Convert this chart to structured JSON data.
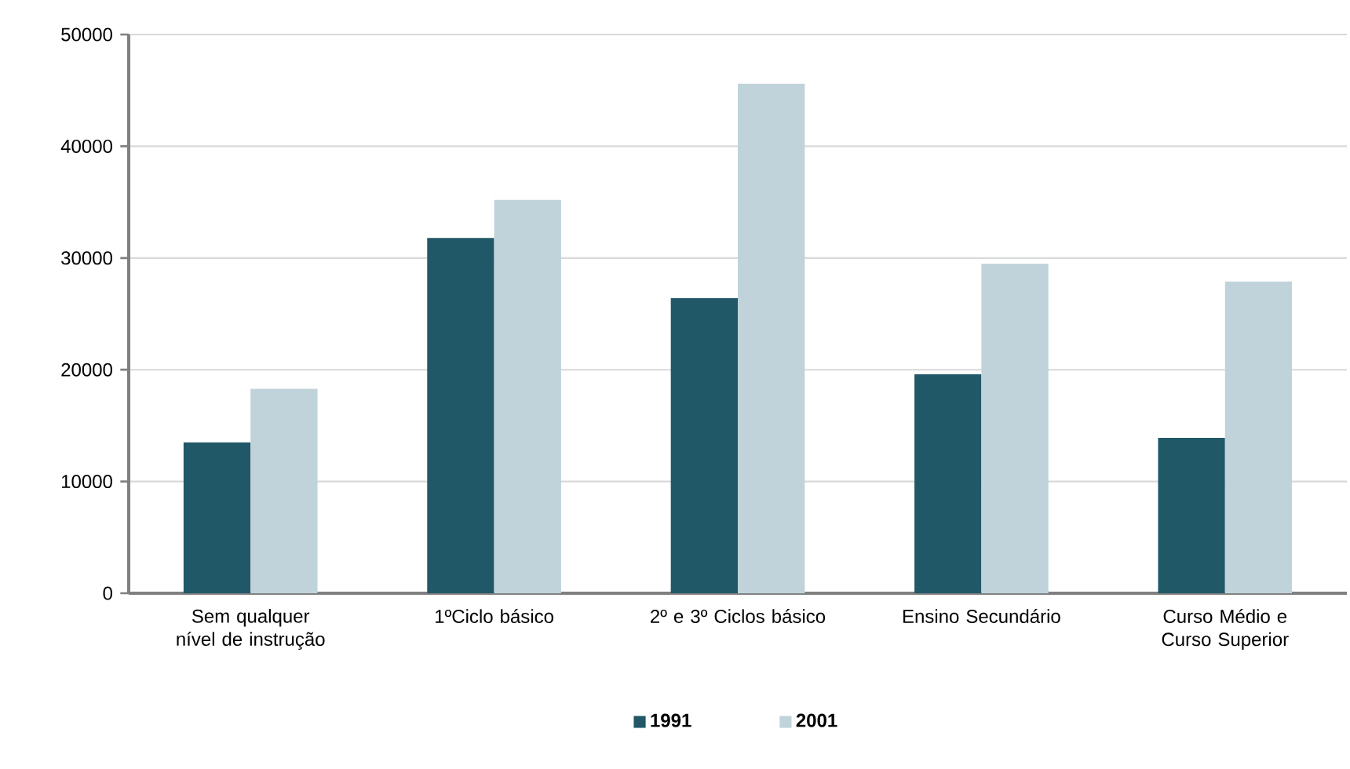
{
  "chart_data": {
    "type": "bar",
    "categories": [
      "Sem qualquer nível de instrução",
      "1ºCiclo básico",
      "2º e 3º Ciclos básico",
      "Ensino Secundário",
      "Curso Médio e Curso Superior"
    ],
    "series": [
      {
        "name": "1991",
        "color": "#215868",
        "values": [
          13500,
          31800,
          26400,
          19600,
          13900
        ]
      },
      {
        "name": "2001",
        "color": "#c0d3db",
        "values": [
          18300,
          35200,
          45600,
          29500,
          27900
        ]
      }
    ],
    "ylim": [
      0,
      50000
    ],
    "yticks": [
      0,
      10000,
      20000,
      30000,
      40000,
      50000
    ],
    "grid": "y",
    "legend": "bottom"
  }
}
